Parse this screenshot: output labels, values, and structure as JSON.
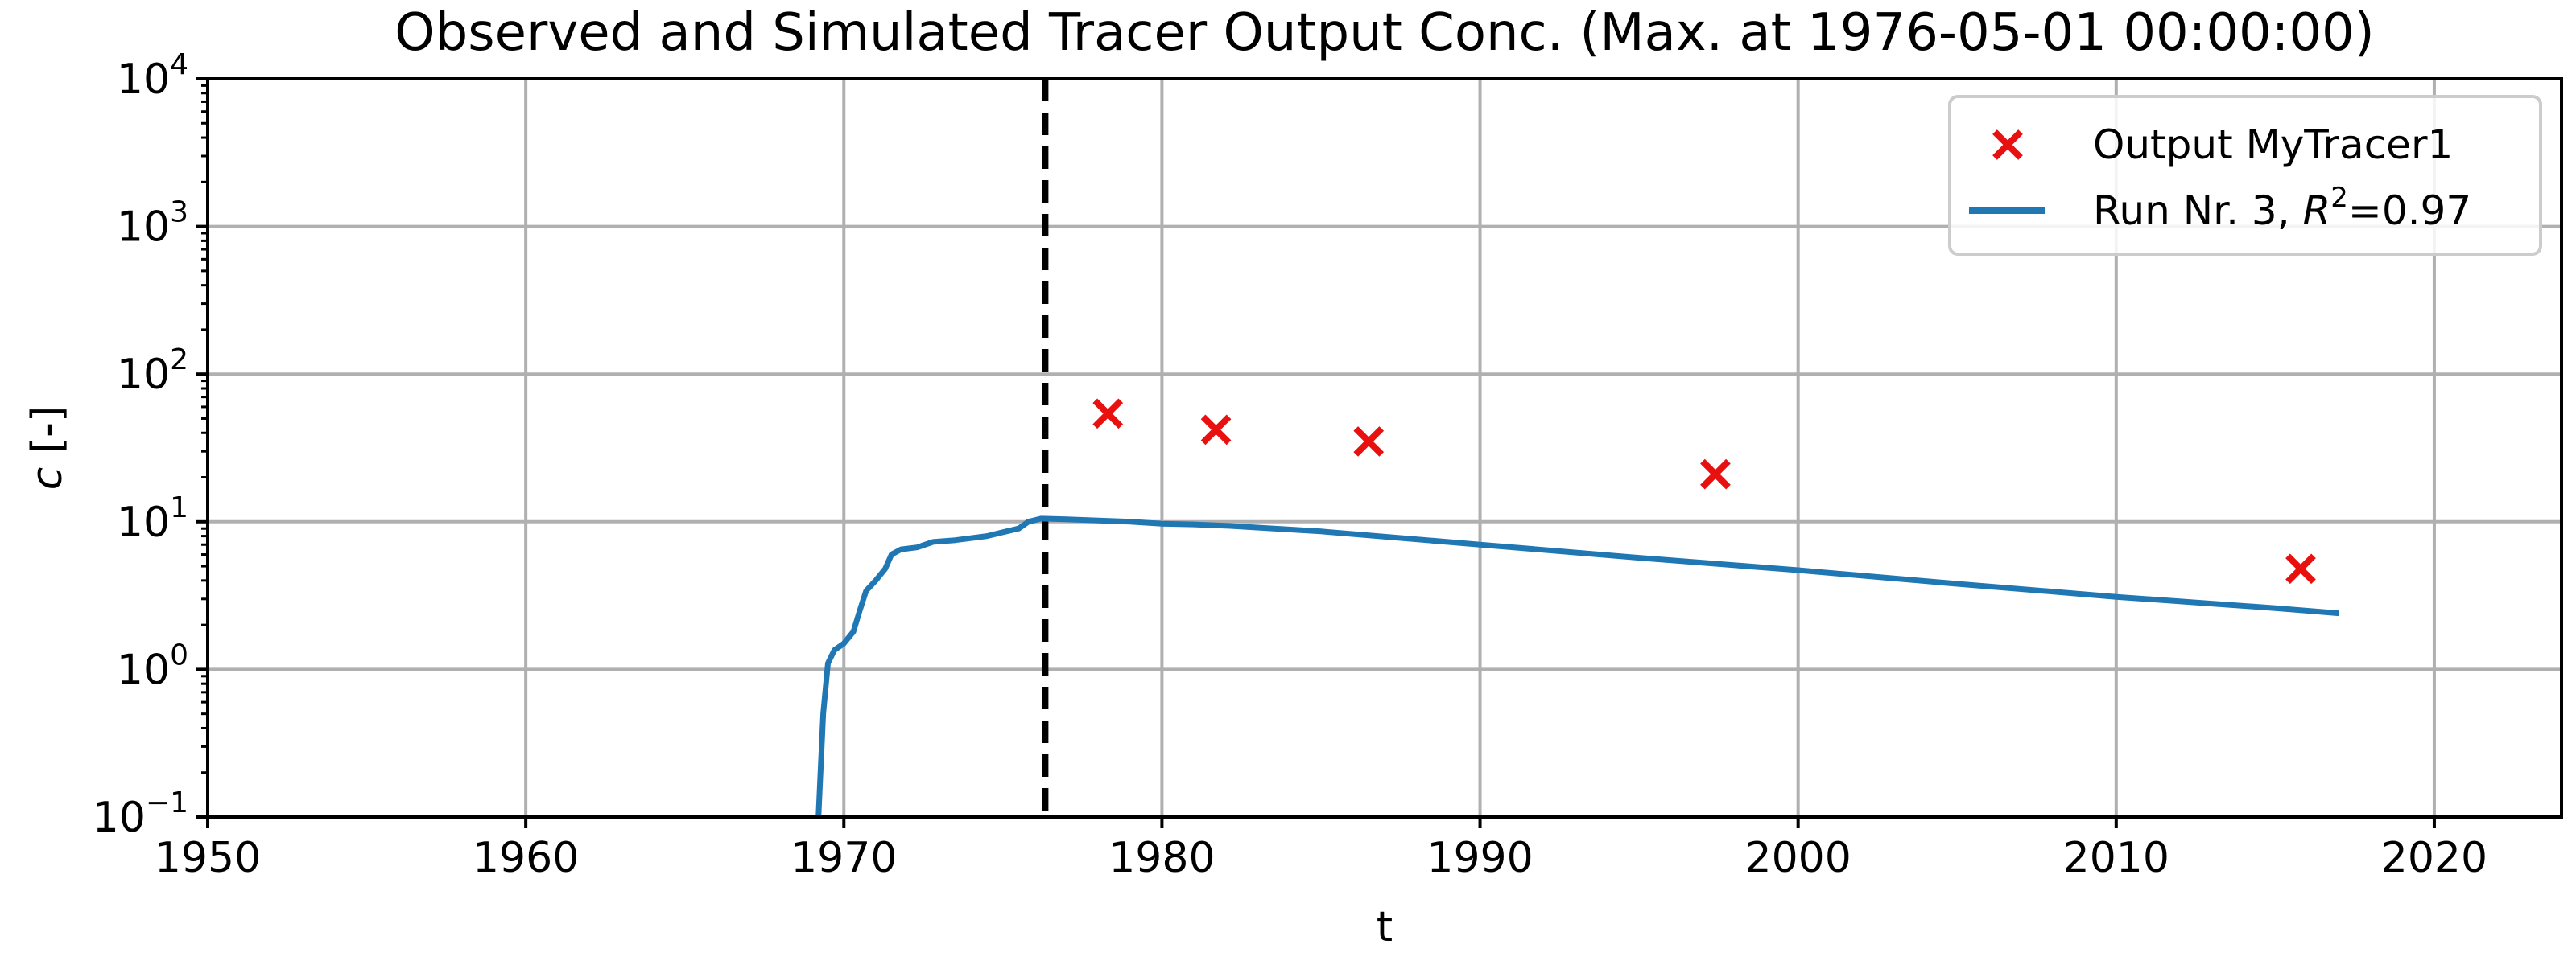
{
  "chart_data": {
    "type": "line",
    "title": "Observed and Simulated Tracer Output Conc. (Max. at 1976-05-01 00:00:00)",
    "xlabel": "t",
    "ylabel": "c [-]",
    "xlim": [
      1950,
      2024
    ],
    "ylim": [
      0.1,
      10000
    ],
    "y_scale": "log",
    "grid": true,
    "legend_position": "top-right",
    "x_ticks": [
      1950,
      1960,
      1970,
      1980,
      1990,
      2000,
      2010,
      2020
    ],
    "y_ticks": [
      {
        "value": 0.1,
        "base": "10",
        "exp": "−1"
      },
      {
        "value": 1,
        "base": "10",
        "exp": "0"
      },
      {
        "value": 10,
        "base": "10",
        "exp": "1"
      },
      {
        "value": 100,
        "base": "10",
        "exp": "2"
      },
      {
        "value": 1000,
        "base": "10",
        "exp": "3"
      },
      {
        "value": 10000,
        "base": "10",
        "exp": "4"
      }
    ],
    "vertical_line": {
      "x": 1976.33,
      "style": "dashed",
      "color": "#000000"
    },
    "observed": {
      "name": "Output MyTracer1",
      "marker": "x",
      "color": "#e8110f",
      "points": [
        {
          "x": 1978.3,
          "y": 54
        },
        {
          "x": 1981.7,
          "y": 42
        },
        {
          "x": 1986.5,
          "y": 35
        },
        {
          "x": 1997.4,
          "y": 21
        },
        {
          "x": 2015.8,
          "y": 4.8
        }
      ]
    },
    "simulated": {
      "name_prefix": "Run Nr. 3, ",
      "name_symbol": "R",
      "name_sup": "2",
      "name_suffix": "=0.97",
      "color": "#1f77b4",
      "points": [
        [
          1969.2,
          0.1
        ],
        [
          1969.35,
          0.5
        ],
        [
          1969.5,
          1.1
        ],
        [
          1969.7,
          1.35
        ],
        [
          1970.0,
          1.5
        ],
        [
          1970.3,
          1.8
        ],
        [
          1970.5,
          2.5
        ],
        [
          1970.7,
          3.4
        ],
        [
          1971.0,
          4.0
        ],
        [
          1971.3,
          4.8
        ],
        [
          1971.5,
          6.0
        ],
        [
          1971.8,
          6.5
        ],
        [
          1972.3,
          6.7
        ],
        [
          1972.8,
          7.3
        ],
        [
          1973.5,
          7.5
        ],
        [
          1974.5,
          8.0
        ],
        [
          1975.0,
          8.5
        ],
        [
          1975.5,
          9.0
        ],
        [
          1975.8,
          10.0
        ],
        [
          1976.2,
          10.5
        ],
        [
          1977.0,
          10.4
        ],
        [
          1978.0,
          10.2
        ],
        [
          1979.0,
          10.0
        ],
        [
          1980.0,
          9.7
        ],
        [
          1981.0,
          9.6
        ],
        [
          1982.0,
          9.4
        ],
        [
          1985.0,
          8.6
        ],
        [
          1990.0,
          7.0
        ],
        [
          1995.0,
          5.7
        ],
        [
          2000.0,
          4.7
        ],
        [
          2005.0,
          3.8
        ],
        [
          2010.0,
          3.1
        ],
        [
          2015.0,
          2.6
        ],
        [
          2017.0,
          2.4
        ]
      ]
    }
  }
}
